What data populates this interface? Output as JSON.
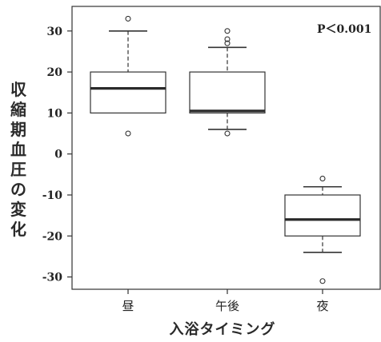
{
  "chart_data": {
    "type": "box",
    "categories": [
      "昼",
      "午後",
      "夜"
    ],
    "ylabel": "収縮期血圧の変化",
    "xlabel": "入浴タイミング",
    "annotation": "P＜0.001",
    "ylim": [
      -33,
      36
    ],
    "yticks": [
      30,
      20,
      10,
      0,
      -10,
      -20,
      -30
    ],
    "boxes": [
      {
        "category": "昼",
        "whisker_low": 10,
        "q1": 10,
        "median": 16,
        "q3": 20,
        "whisker_high": 30,
        "outliers": [
          33,
          5
        ]
      },
      {
        "category": "午後",
        "whisker_low": 6,
        "q1": 10,
        "median": 10.5,
        "q3": 20,
        "whisker_high": 26,
        "outliers": [
          30,
          28,
          27,
          5
        ]
      },
      {
        "category": "夜",
        "whisker_low": -24,
        "q1": -20,
        "median": -16,
        "q3": -10,
        "whisker_high": -8,
        "outliers": [
          -6,
          -31
        ]
      }
    ],
    "grid": false,
    "colors": {
      "box_fill": "#ffffff",
      "stroke": "#333333",
      "median": "#2a2a2a"
    }
  }
}
